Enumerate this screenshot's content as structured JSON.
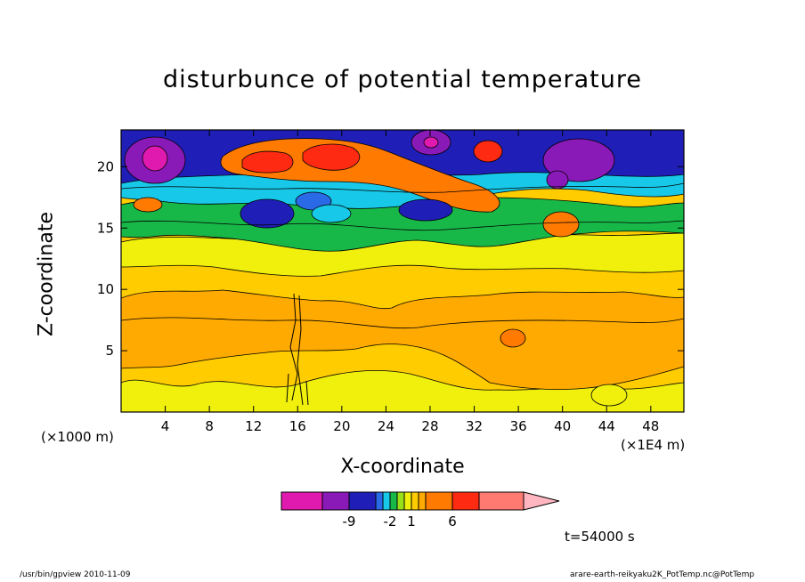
{
  "chart_data": {
    "type": "heatmap",
    "title": "disturbunce of potential temperature",
    "xlabel": "X-coordinate",
    "ylabel": "Z-coordinate",
    "x_unit_left": "(×1000 m)",
    "x_unit_right": "(×1E4 m)",
    "xlim": [
      0,
      51
    ],
    "ylim": [
      0,
      23
    ],
    "x_ticks": [
      4,
      8,
      12,
      16,
      20,
      24,
      28,
      32,
      36,
      40,
      44,
      48
    ],
    "y_ticks": [
      5,
      10,
      15,
      20
    ],
    "colorbar": {
      "colors": [
        "#e01aae",
        "#8a1ab8",
        "#1f1fb8",
        "#2a6ae6",
        "#18c8e8",
        "#18b848",
        "#9ae018",
        "#f0f00c",
        "#ffcc00",
        "#ffaa00",
        "#ff7a00",
        "#ff2a12",
        "#ff7a70",
        "#ffb6c0"
      ],
      "tick_labels": [
        "-9",
        "-2",
        "1",
        "6"
      ]
    },
    "time_label": "t=54000 s"
  },
  "footer": {
    "left": "/usr/bin/gpview   2010-11-09",
    "right": "arare-earth-reikyaku2K_PotTemp.nc@PotTemp"
  }
}
